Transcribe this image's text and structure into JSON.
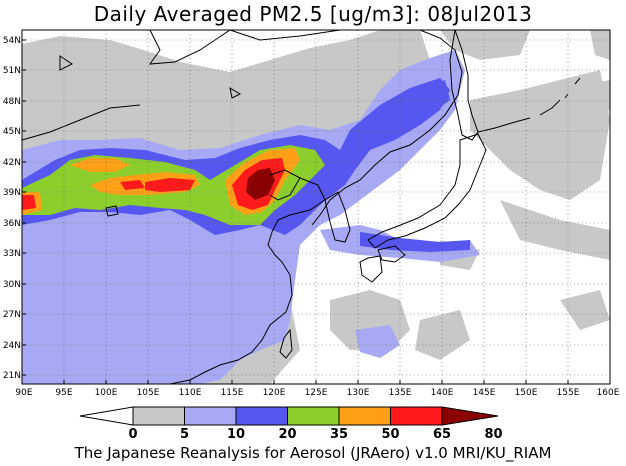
{
  "title": "Daily Averaged PM2.5 [ug/m3]: 08Jul2013",
  "footer": "The Japanese Reanalysis for Aerosol (JRAero) v1.0 MRI/KU_RIAM",
  "map": {
    "lon_labels": [
      "90E",
      "95E",
      "100E",
      "105E",
      "110E",
      "115E",
      "120E",
      "125E",
      "130E",
      "135E",
      "140E",
      "145E",
      "150E",
      "155E",
      "160E"
    ],
    "lat_labels": [
      "54N",
      "51N",
      "48N",
      "45N",
      "42N",
      "39N",
      "36N",
      "33N",
      "30N",
      "27N",
      "24N",
      "21N"
    ],
    "grid": "dotted"
  },
  "colorbar": {
    "levels": [
      "0",
      "5",
      "10",
      "20",
      "35",
      "50",
      "65",
      "80"
    ],
    "colors": [
      "#ffffff",
      "#c8c8c8",
      "#a7a9f5",
      "#5557f0",
      "#8ccf2d",
      "#ffa016",
      "#ff1b1b",
      "#8b0000"
    ]
  }
}
